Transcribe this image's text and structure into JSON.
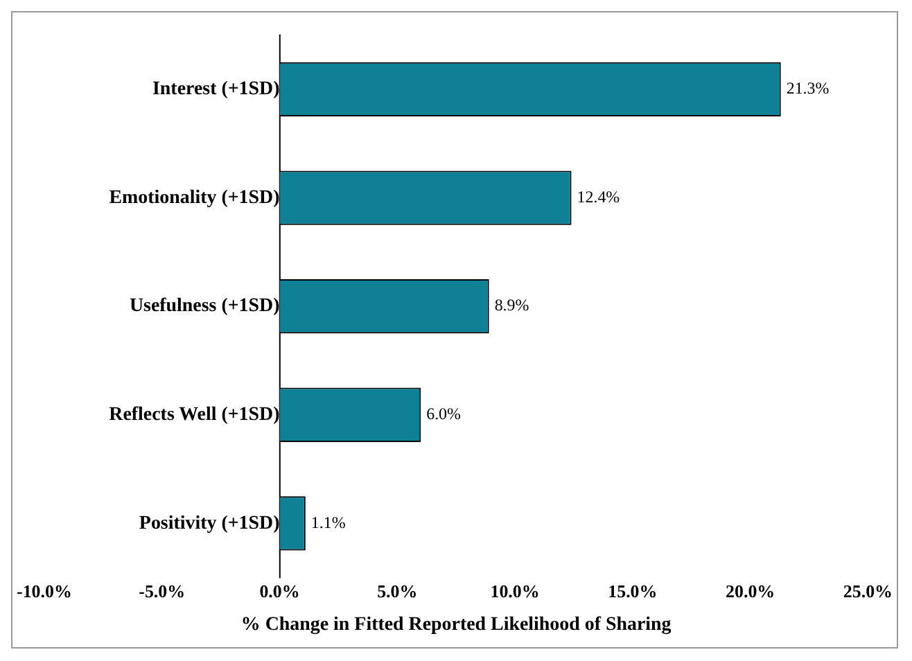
{
  "chart_data": {
    "type": "bar",
    "orientation": "horizontal",
    "xlabel": "% Change in Fitted Reported Likelihood of Sharing",
    "categories": [
      "Interest (+1SD)",
      "Emotionality (+1SD)",
      "Usefulness (+1SD)",
      "Reflects Well (+1SD)",
      "Positivity (+1SD)"
    ],
    "values": [
      21.3,
      12.4,
      8.9,
      6.0,
      1.1
    ],
    "value_labels": [
      "21.3%",
      "12.4%",
      "8.9%",
      "6.0%",
      "1.1%"
    ],
    "color": "#0e8196",
    "xlim": [
      -10,
      25
    ],
    "xticks": [
      {
        "value": -10,
        "label": "-10.0%"
      },
      {
        "value": -5,
        "label": "-5.0%"
      },
      {
        "value": 0,
        "label": "0.0%"
      },
      {
        "value": 5,
        "label": "5.0%"
      },
      {
        "value": 10,
        "label": "10.0%"
      },
      {
        "value": 15,
        "label": "15.0%"
      },
      {
        "value": 20,
        "label": "20.0%"
      },
      {
        "value": 25,
        "label": "25.0%"
      }
    ],
    "grid": false,
    "legend": false
  }
}
